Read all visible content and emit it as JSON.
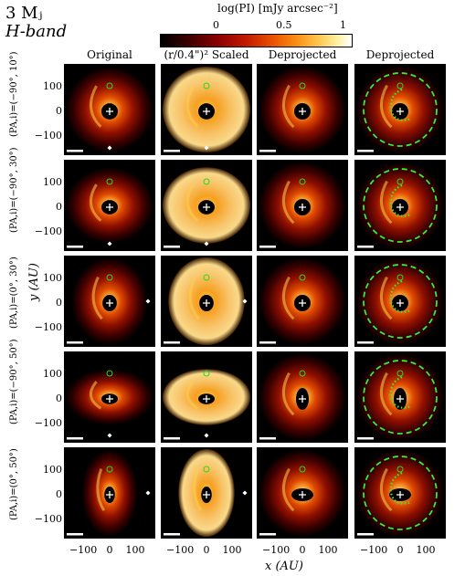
{
  "title": "3 Mⱼ",
  "subtitle": "H-band",
  "colorbar": {
    "label": "log(PI) [mJy arcsec⁻²]",
    "ticks": [
      "0",
      "0.5",
      "1"
    ]
  },
  "columns": [
    "Original",
    "(r/0.4\")² Scaled",
    "Deprojected",
    "Deprojected"
  ],
  "rows": [
    {
      "label": "(PA,i)=(−90°, 10°)"
    },
    {
      "label": "(PA,i)=(−90°, 30°)"
    },
    {
      "label": "(PA,i)=(0°, 30°)"
    },
    {
      "label": "(PA,i)=(−90°, 50°)"
    },
    {
      "label": "(PA,i)=(0°, 50°)"
    }
  ],
  "y_axis": {
    "label": "y (AU)",
    "ticks": [
      "100",
      "0",
      "−100"
    ]
  },
  "x_axis": {
    "label": "x (AU)",
    "ticks": [
      "−100",
      "0",
      "100"
    ]
  },
  "colors": {
    "planet_marker": "#22dd22",
    "spiral_overlay": "#33ee33",
    "star_marker": "#ffffff"
  }
}
